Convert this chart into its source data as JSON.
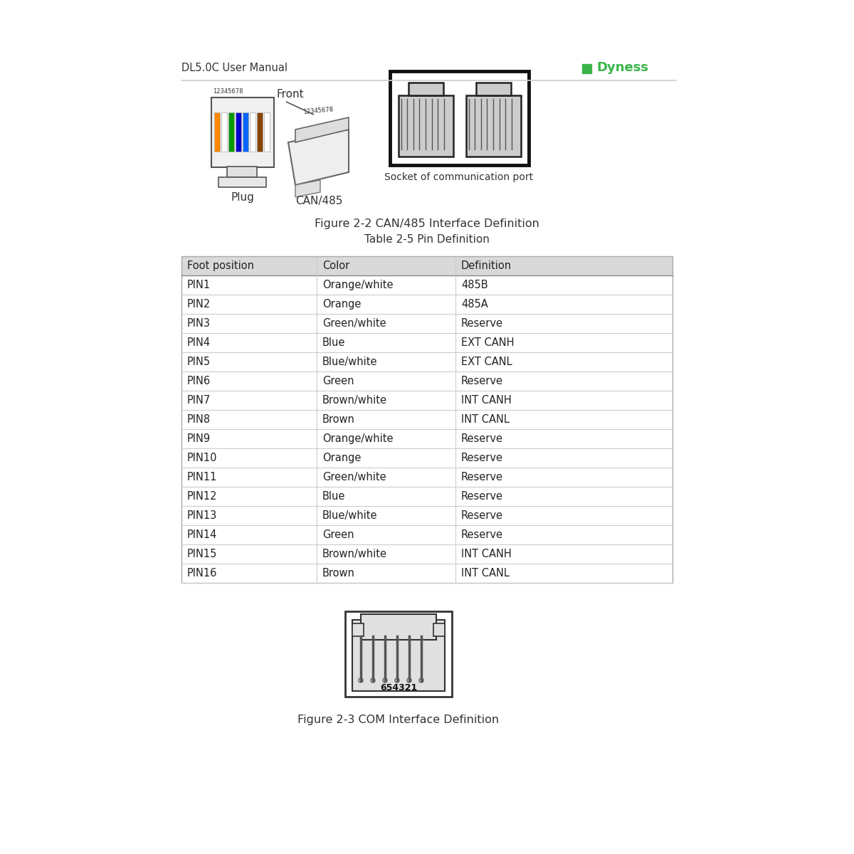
{
  "header_left": "DL5.0C User Manual",
  "header_right": "Dyness",
  "header_right_color": "#3ab54a",
  "background_color": "#ffffff",
  "figure_caption_1": "Figure 2-2 CAN/485 Interface Definition",
  "label_front": "Front",
  "label_plug": "Plug",
  "label_can485": "CAN/485",
  "label_socket": "Socket of communication port",
  "table_title": "Table 2-5 Pin Definition",
  "table_headers": [
    "Foot position",
    "Color",
    "Definition"
  ],
  "table_header_bg": "#d9d9d9",
  "table_rows": [
    [
      "PIN1",
      "Orange/white",
      "485B"
    ],
    [
      "PIN2",
      "Orange",
      "485A"
    ],
    [
      "PIN3",
      "Green/white",
      "Reserve"
    ],
    [
      "PIN4",
      "Blue",
      "EXT CANH"
    ],
    [
      "PIN5",
      "Blue/white",
      "EXT CANL"
    ],
    [
      "PIN6",
      "Green",
      "Reserve"
    ],
    [
      "PIN7",
      "Brown/white",
      "INT CANH"
    ],
    [
      "PIN8",
      "Brown",
      "INT CANL"
    ],
    [
      "PIN9",
      "Orange/white",
      "Reserve"
    ],
    [
      "PIN10",
      "Orange",
      "Reserve"
    ],
    [
      "PIN11",
      "Green/white",
      "Reserve"
    ],
    [
      "PIN12",
      "Blue",
      "Reserve"
    ],
    [
      "PIN13",
      "Blue/white",
      "Reserve"
    ],
    [
      "PIN14",
      "Green",
      "Reserve"
    ],
    [
      "PIN15",
      "Brown/white",
      "INT CANH"
    ],
    [
      "PIN16",
      "Brown",
      "INT CANL"
    ]
  ],
  "figure_caption_2": "Figure 2-3 COM Interface Definition",
  "com_label": "654321",
  "text_color": "#222222",
  "line_color": "#888888",
  "border_color": "#aaaaaa"
}
